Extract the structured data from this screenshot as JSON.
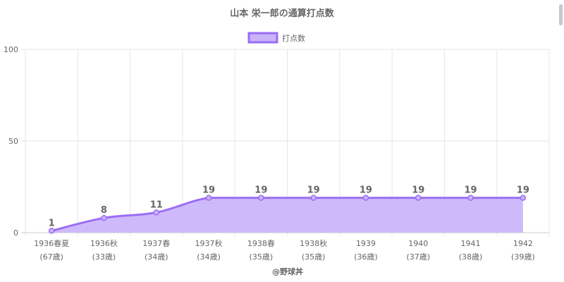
{
  "chart_data": {
    "type": "area",
    "title": "山本 栄一郎の通算打点数",
    "categories": [
      "1936春夏",
      "1936秋",
      "1937春",
      "1937秋",
      "1938春",
      "1938秋",
      "1939",
      "1940",
      "1941",
      "1942"
    ],
    "sublabels": [
      "(67歳)",
      "(33歳)",
      "(34歳)",
      "(34歳)",
      "(35歳)",
      "(35歳)",
      "(36歳)",
      "(37歳)",
      "(38歳)",
      "(39歳)"
    ],
    "series": [
      {
        "name": "打点数",
        "values": [
          1,
          8,
          11,
          19,
          19,
          19,
          19,
          19,
          19,
          19
        ]
      }
    ],
    "ylim": [
      0,
      100
    ],
    "yticks": [
      0,
      50,
      100
    ],
    "grid": true,
    "legend": "top",
    "credit": "@野球丼",
    "colors": {
      "line": "#9b6ef3",
      "fill": "#c9b3fb",
      "text": "#666666",
      "grid": "#e6e6e6"
    }
  }
}
